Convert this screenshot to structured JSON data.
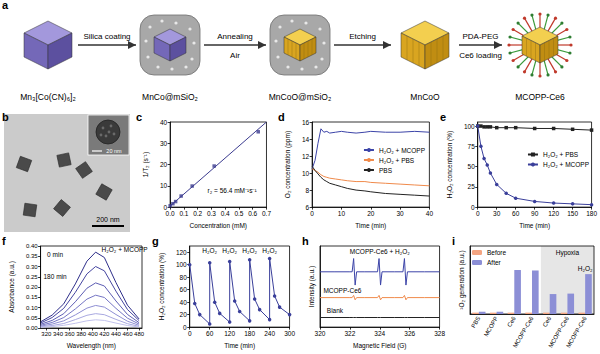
{
  "schematic": {
    "panel": "a",
    "stages": [
      "Mn₃[Co(CN)₆]₂",
      "MnCo@mSiO₂",
      "MnCoO@mSiO₂",
      "MnCoO",
      "MCOPP-Ce6"
    ],
    "steps": [
      {
        "above": "Silica coating"
      },
      {
        "above": "Annealing",
        "below": "Air"
      },
      {
        "above": "Etching"
      },
      {
        "above": "PDA-PEG",
        "below": "Ce6 loading"
      }
    ]
  },
  "micrograph": {
    "panel": "b",
    "scale_bar": "200 nm",
    "inset_scale_bar": "20 nm"
  },
  "chart_data": [
    {
      "panel": "c",
      "type": "scatter",
      "x_label": "Concentration (mM)",
      "y_label": "1/T₂ (s⁻¹)",
      "xlim": [
        0,
        0.7
      ],
      "xticks": [
        {
          "value": 0,
          "label": "0.0"
        },
        0.1,
        0.2,
        0.3,
        0.4,
        0.5,
        0.6,
        0.7
      ],
      "ylim": [
        0,
        40
      ],
      "yticks": [
        0,
        10,
        20,
        30,
        40
      ],
      "grid": false,
      "series": [
        {
          "type": "scatter",
          "marker": "square",
          "color": "#3b3b8f",
          "x": [
            0,
            0.02,
            0.04,
            0.08,
            0.16,
            0.32,
            0.64
          ],
          "values": [
            0.6,
            1.6,
            2.6,
            5.2,
            9.9,
            19.3,
            35.4
          ]
        },
        {
          "type": "line",
          "line_style": "solid",
          "color": "#3b3b8f",
          "x": [
            0,
            0.7
          ],
          "values": [
            0.5,
            40
          ]
        }
      ],
      "annotations": [
        {
          "text": "r₂ = 56.4 mM⁻¹s⁻¹",
          "x": 0.45,
          "y": 8
        }
      ]
    },
    {
      "panel": "d",
      "type": "line",
      "x_label": "Time (min)",
      "y_label": "O₂ concentration (ppm)",
      "x": [
        0,
        1,
        2,
        3,
        4,
        5,
        6,
        8,
        10,
        12,
        15,
        18,
        20,
        25,
        30,
        35,
        40
      ],
      "xlim": [
        0,
        40
      ],
      "xticks": [
        0,
        10,
        20,
        30,
        40
      ],
      "ylim": [
        6,
        16
      ],
      "yticks": [
        6,
        8,
        10,
        12,
        14,
        16
      ],
      "grid": false,
      "legend": "right",
      "series": [
        {
          "name": "H₂O₂ + MCOPP",
          "color": "#3c44a8",
          "values": [
            10.5,
            11.5,
            13.5,
            15.2,
            14.8,
            14.9,
            14.7,
            14.8,
            14.9,
            14.8,
            14.7,
            14.8,
            14.9,
            14.8,
            14.8,
            14.9,
            14.8
          ]
        },
        {
          "name": "H₂O₂ + PBS",
          "color": "#f08a4b",
          "values": [
            10.5,
            10.3,
            10.1,
            9.8,
            9.6,
            9.5,
            9.4,
            9.3,
            9.2,
            9.1,
            9.0,
            9.0,
            8.9,
            8.8,
            8.7,
            8.6,
            8.5
          ]
        },
        {
          "name": "PBS",
          "color": "#222222",
          "values": [
            10.8,
            10.3,
            9.9,
            9.5,
            9.2,
            9.0,
            8.8,
            8.6,
            8.4,
            8.2,
            8.0,
            7.9,
            7.8,
            7.6,
            7.5,
            7.4,
            7.3
          ]
        }
      ]
    },
    {
      "panel": "e",
      "type": "line",
      "x_label": "Time (min)",
      "y_label": "H₂O₂ concentration (%)",
      "x": [
        0,
        5,
        10,
        15,
        20,
        30,
        45,
        60,
        90,
        120,
        150,
        180
      ],
      "xlim": [
        0,
        180
      ],
      "xticks": [
        0,
        30,
        60,
        90,
        120,
        150,
        180
      ],
      "ylim": [
        0,
        105
      ],
      "yticks": [
        0,
        25,
        50,
        75,
        100
      ],
      "grid": false,
      "legend": "right",
      "series": [
        {
          "name": "H₂O₂ + PBS",
          "color": "#222222",
          "marker": "square",
          "values": [
            100,
            100,
            99,
            99,
            99,
            98,
            98,
            98,
            97,
            97,
            96,
            95
          ]
        },
        {
          "name": "H₂O₂ + MCOPP",
          "color": "#3a3f9a",
          "marker": "circle",
          "values": [
            100,
            75,
            60,
            52,
            42,
            28,
            17,
            11,
            7,
            5,
            4,
            3
          ]
        }
      ]
    },
    {
      "panel": "f",
      "type": "line",
      "x_label": "Wavelength (nm)",
      "y_label": "Absorbance (a.u.)",
      "x": [
        310,
        330,
        350,
        370,
        390,
        405,
        420,
        440,
        460,
        480
      ],
      "xlim": [
        310,
        485
      ],
      "xticks": [
        320,
        340,
        360,
        380,
        400,
        420,
        440,
        460,
        480
      ],
      "ylim": [
        0,
        0.4
      ],
      "yticks": [
        {
          "value": 0,
          "label": "0.00"
        },
        0.05,
        {
          "value": 0.1,
          "label": "0.10"
        },
        0.15,
        {
          "value": 0.2,
          "label": "0.20"
        },
        0.25,
        {
          "value": 0.3,
          "label": "0.30"
        },
        0.35,
        {
          "value": 0.4,
          "label": "0.40"
        }
      ],
      "grid": false,
      "series": [
        {
          "color": "#2e2e8a",
          "values": [
            0.03,
            0.063,
            0.118,
            0.215,
            0.326,
            0.37,
            0.344,
            0.222,
            0.111,
            0.044
          ]
        },
        {
          "color": "#4545a0",
          "values": [
            0.024,
            0.051,
            0.096,
            0.174,
            0.264,
            0.3,
            0.279,
            0.18,
            0.09,
            0.036
          ]
        },
        {
          "color": "#5d5db3",
          "values": [
            0.018,
            0.037,
            0.07,
            0.128,
            0.194,
            0.22,
            0.205,
            0.132,
            0.066,
            0.026
          ]
        },
        {
          "color": "#7575c4",
          "values": [
            0.013,
            0.027,
            0.051,
            0.093,
            0.141,
            0.16,
            0.149,
            0.096,
            0.048,
            0.019
          ]
        },
        {
          "color": "#8e8ed3",
          "values": [
            0.009,
            0.019,
            0.035,
            0.064,
            0.097,
            0.11,
            0.102,
            0.066,
            0.033,
            0.013
          ]
        },
        {
          "color": "#a8a8e0",
          "values": [
            0.006,
            0.012,
            0.022,
            0.041,
            0.062,
            0.07,
            0.065,
            0.042,
            0.021,
            0.008
          ]
        },
        {
          "color": "#c2c2ec",
          "values": [
            0.003,
            0.007,
            0.013,
            0.023,
            0.035,
            0.04,
            0.037,
            0.024,
            0.012,
            0.005
          ]
        }
      ],
      "annotations": [
        {
          "text": "H₂O₂ + MCOPP",
          "x": 455,
          "y": 0.385
        },
        {
          "text": "0 min",
          "x": 335,
          "y": 0.36
        },
        {
          "text": "180 min",
          "x": 335,
          "y": 0.25
        }
      ]
    },
    {
      "panel": "g",
      "type": "line",
      "x_label": "Time (min)",
      "y_label": "H₂O₂ concentration (%)",
      "x": [
        0,
        15,
        30,
        60,
        60,
        75,
        90,
        120,
        120,
        135,
        150,
        180,
        180,
        195,
        210,
        240,
        240,
        255,
        270,
        300
      ],
      "xlim": [
        0,
        300
      ],
      "xticks": [
        0,
        60,
        120,
        180,
        240,
        300
      ],
      "ylim": [
        0,
        130
      ],
      "yticks": [
        0,
        20,
        40,
        60,
        80,
        100,
        120
      ],
      "grid": false,
      "series": [
        {
          "color": "#3a3f9a",
          "marker": "circle",
          "values": [
            100,
            38,
            20,
            5,
            103,
            40,
            22,
            8,
            105,
            42,
            25,
            10,
            108,
            45,
            28,
            12,
            110,
            50,
            32,
            20
          ]
        }
      ],
      "annotations": [
        {
          "text": "H₂O₂",
          "x": 60,
          "y": 122
        },
        {
          "text": "H₂O₂",
          "x": 120,
          "y": 122
        },
        {
          "text": "H₂O₂",
          "x": 180,
          "y": 122
        },
        {
          "text": "H₂O₂",
          "x": 240,
          "y": 122
        }
      ]
    },
    {
      "panel": "h",
      "type": "line",
      "x_label": "Magnetic Field (G)",
      "y_label": "Intensity (a.u.)",
      "x": [
        320,
        321,
        322,
        322.15,
        322.25,
        322.35,
        322.45,
        323,
        323.85,
        323.95,
        324.05,
        324.15,
        325,
        325.55,
        325.65,
        325.75,
        325.85,
        327,
        328
      ],
      "xlim": [
        320,
        328
      ],
      "xticks": [
        320,
        322,
        324,
        326,
        328
      ],
      "ylim": [
        0,
        11
      ],
      "grid": false,
      "tick_labels": "x",
      "series": [
        {
          "color": "#3c44a8",
          "values": [
            7.5,
            7.5,
            7.5,
            7.5,
            9.3,
            5.7,
            7.5,
            7.5,
            7.5,
            9.3,
            5.7,
            7.5,
            7.5,
            7.5,
            9.3,
            5.7,
            7.5,
            7.5,
            7.5
          ]
        },
        {
          "color": "#f08a4b",
          "values": [
            4,
            4,
            4,
            4,
            4.3,
            3.7,
            4,
            4,
            4,
            4.3,
            3.7,
            4,
            4,
            4,
            4.3,
            3.7,
            4,
            4,
            4
          ]
        },
        {
          "color": "#222222",
          "values": [
            1.3,
            1.3,
            1.3,
            1.3,
            1.3,
            1.3,
            1.3,
            1.3,
            1.3,
            1.3,
            1.3,
            1.3,
            1.3,
            1.3,
            1.3,
            1.3,
            1.3,
            1.3,
            1.3
          ]
        }
      ],
      "annotations": [
        {
          "text": "MCOPP-Ce6 + H₂O₂",
          "x": 324,
          "y": 10.2
        },
        {
          "text": "MCOPP-Ce6",
          "x": 321.5,
          "y": 5.0
        },
        {
          "text": "Blank",
          "x": 321,
          "y": 2.3
        }
      ]
    },
    {
      "panel": "i",
      "type": "bar",
      "y_label": "¹O₂ generation (a.u.)",
      "categories": [
        "PBS",
        "MCOPP",
        "Ce6",
        "MCOPP-Ce6",
        "Ce6",
        "MCOPP-Ce6",
        "MCOPP-Ce6"
      ],
      "ylim": [
        0,
        1.5
      ],
      "grid": false,
      "tick_labels": "x",
      "legend": "top-left",
      "series": [
        {
          "name": "Before",
          "color": "#f4a582",
          "values": [
            0.03,
            0.03,
            0.03,
            0.03,
            0.03,
            0.03,
            0.03
          ]
        },
        {
          "name": "After",
          "color": "#8c8fd6",
          "values": [
            0.05,
            0.05,
            0.97,
            0.96,
            0.44,
            0.45,
            0.88
          ]
        }
      ],
      "regions": [
        {
          "label": "Hypoxia",
          "start": 4,
          "end": 6
        }
      ],
      "annotations": [
        {
          "text": "H₂O₂",
          "x": 6,
          "y": 1.0
        }
      ]
    }
  ]
}
